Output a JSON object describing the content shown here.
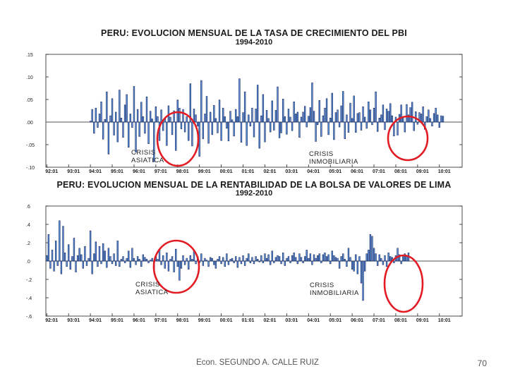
{
  "colors": {
    "bar_fill": "#5b8fd6",
    "bar_stroke": "#0a1650",
    "axis": "#222222",
    "circle": "#e31b23"
  },
  "chart_data": [
    {
      "type": "bar",
      "title": "PERU: EVOLUCION MENSUAL DE LA TASA DE CRECIMIENTO DEL PBI",
      "subtitle": "1994-2010",
      "ylim": [
        -0.1,
        0.15
      ],
      "ytick_labels": [
        ".15",
        ".10",
        ".05",
        ".00",
        "-.05",
        "-.10"
      ],
      "yticks": [
        0.15,
        0.1,
        0.05,
        0.0,
        -0.05,
        -0.1
      ],
      "xtick_labels": [
        "92:01",
        "93:01",
        "94:01",
        "95:01",
        "96:01",
        "97:01",
        "98:01",
        "99:01",
        "00:01",
        "01:01",
        "02:01",
        "03:01",
        "04:01",
        "05:01",
        "06:01",
        "07:01",
        "08:01",
        "09:01",
        "10:01"
      ],
      "x_start_year": 1992,
      "data_start_index": 24,
      "annotations": [
        {
          "text": "CRISIS\nASIATICA"
        },
        {
          "text": "CRISIS\nINMOBILIARIA"
        }
      ],
      "series": [
        {
          "values": [
            0.002,
            0.028,
            -0.025,
            0.031,
            -0.012,
            0.018,
            0.045,
            -0.038,
            0.006,
            0.067,
            -0.071,
            0.014,
            0.052,
            -0.029,
            0.022,
            -0.044,
            0.071,
            0.009,
            -0.034,
            0.038,
            0.061,
            -0.056,
            0.018,
            -0.012,
            0.079,
            -0.067,
            0.028,
            -0.032,
            0.044,
            0.012,
            -0.025,
            0.056,
            -0.048,
            0.024,
            0.007,
            -0.088,
            0.034,
            0.012,
            -0.041,
            0.027,
            -0.019,
            0.008,
            -0.052,
            0.036,
            0.011,
            -0.028,
            0.025,
            -0.063,
            0.049,
            0.031,
            -0.015,
            0.028,
            -0.022,
            0.012,
            -0.041,
            0.085,
            -0.053,
            0.029,
            0.016,
            -0.009,
            -0.076,
            0.092,
            -0.037,
            0.018,
            0.057,
            -0.047,
            0.022,
            -0.028,
            0.037,
            0.008,
            -0.024,
            0.049,
            -0.041,
            0.031,
            0.012,
            -0.014,
            -0.042,
            0.024,
            0.005,
            -0.031,
            0.028,
            0.012,
            0.096,
            -0.045,
            0.021,
            0.067,
            -0.052,
            0.016,
            -0.009,
            0.031,
            -0.033,
            0.029,
            0.082,
            -0.058,
            0.014,
            0.061,
            -0.044,
            0.026,
            0.008,
            -0.022,
            0.047,
            -0.018,
            0.026,
            0.078,
            -0.035,
            -0.024,
            0.051,
            0.012,
            -0.027,
            0.029,
            0.011,
            -0.019,
            0.045,
            0.018,
            0.022,
            -0.034,
            0.011,
            0.022,
            0.035,
            -0.011,
            0.013,
            0.032,
            0.087,
            0.024,
            -0.043,
            -0.006,
            0.048,
            -0.032,
            0.014,
            0.031,
            0.052,
            -0.028,
            0.009,
            0.064,
            -0.039,
            0.021,
            0.027,
            -0.011,
            0.036,
            0.068,
            -0.037,
            0.016,
            -0.023,
            0.042,
            0.008,
            0.058,
            -0.023,
            0.019,
            0.021,
            -0.018,
            0.034,
            0.011,
            -0.014,
            0.045,
            0.027,
            -0.006,
            0.031,
            0.067,
            -0.021,
            0.009,
            0.016,
            0.038,
            -0.017,
            0.029,
            0.024,
            0.041,
            0.014,
            -0.031,
            0.011,
            -0.029,
            0.017,
            0.038,
            0.012,
            -0.022,
            0.039,
            0.016,
            0.032,
            0.044,
            -0.019,
            0.023,
            -0.005,
            0.021,
            0.018,
            0.034,
            -0.016,
            0.012,
            0.027,
            0.008,
            -0.009,
            0.019,
            0.031,
            0.016,
            -0.012,
            0.014,
            0.013
          ]
        }
      ]
    },
    {
      "type": "bar",
      "title": "PERU: EVOLUCION MENSUAL DE LA RENTABILIDAD DE LA BOLSA DE VALORES DE LIMA",
      "subtitle": "1992-2010",
      "ylim": [
        -0.6,
        0.6
      ],
      "ytick_labels": [
        ".6",
        ".4",
        ".2",
        ".0",
        "-.2",
        "-.4",
        "-.6"
      ],
      "yticks": [
        0.6,
        0.4,
        0.2,
        0.0,
        -0.2,
        -0.4,
        -0.6
      ],
      "xtick_labels": [
        "92:01",
        "93:01",
        "94:01",
        "95:01",
        "96:01",
        "97:01",
        "98:01",
        "99:01",
        "00:01",
        "01:01",
        "02:01",
        "03:01",
        "04:01",
        "05:01",
        "06:01",
        "07:01",
        "08:01",
        "09:01",
        "10:01"
      ],
      "x_start_year": 1992,
      "data_start_index": 0,
      "annotations": [
        {
          "text": "CRISIS\nASIATICA"
        },
        {
          "text": "CRISIS\nINMOBILIARIA"
        }
      ],
      "series": [
        {
          "values": [
            0.06,
            0.29,
            -0.08,
            0.12,
            -0.11,
            0.22,
            -0.05,
            0.44,
            -0.14,
            0.38,
            0.09,
            -0.06,
            0.18,
            -0.09,
            0.05,
            0.25,
            -0.12,
            0.06,
            0.14,
            0.07,
            -0.08,
            0.16,
            -0.05,
            0.03,
            0.33,
            -0.14,
            0.08,
            0.21,
            -0.06,
            0.16,
            -0.03,
            0.19,
            0.11,
            -0.07,
            0.14,
            0.05,
            -0.03,
            0.08,
            -0.05,
            0.22,
            -0.06,
            0.02,
            0.05,
            -0.02,
            0.03,
            0.11,
            -0.07,
            0.14,
            0.03,
            -0.04,
            0.05,
            0.02,
            -0.06,
            0.07,
            0.04,
            0.02,
            -0.02,
            0.01,
            0.03,
            -0.09,
            0.05,
            0.02,
            0.12,
            -0.04,
            0.06,
            -0.08,
            0.09,
            -0.11,
            0.02,
            0.05,
            -0.12,
            0.13,
            -0.06,
            -0.21,
            -0.08,
            0.06,
            -0.04,
            0.03,
            -0.09,
            0.06,
            0.02,
            0.12,
            -0.03,
            0.05,
            -0.02,
            0.08,
            -0.05,
            0.03,
            0.01,
            -0.06,
            0.04,
            0.03,
            -0.04,
            -0.08,
            0.02,
            0.05,
            -0.03,
            0.04,
            -0.06,
            0.08,
            -0.04,
            0.02,
            0.03,
            -0.02,
            0.05,
            -0.07,
            0.04,
            -0.03,
            0.06,
            -0.05,
            0.03,
            0.08,
            -0.02,
            0.04,
            -0.03,
            0.05,
            0.02,
            -0.01,
            0.06,
            -0.02,
            0.08,
            0.03,
            0.07,
            -0.04,
            0.11,
            -0.02,
            0.04,
            0.06,
            0.05,
            -0.03,
            0.09,
            -0.05,
            0.03,
            0.05,
            -0.02,
            0.06,
            0.09,
            0.04,
            -0.03,
            0.08,
            0.04,
            -0.02,
            0.05,
            0.12,
            0.03,
            0.08,
            -0.04,
            0.07,
            0.03,
            0.06,
            0.08,
            -0.02,
            0.07,
            0.09,
            0.05,
            0.07,
            -0.03,
            0.11,
            0.06,
            0.04,
            0.03,
            -0.08,
            0.05,
            0.08,
            0.02,
            -0.06,
            0.14,
            0.04,
            -0.09,
            -0.11,
            0.07,
            -0.14,
            0.05,
            -0.24,
            -0.43,
            -0.11,
            0.08,
            0.12,
            0.29,
            0.27,
            0.14,
            0.08,
            -0.05,
            0.07,
            0.03,
            -0.04,
            0.06,
            -0.06,
            0.09,
            0.05,
            0.04,
            -0.02,
            0.06,
            0.14,
            0.07,
            -0.03,
            0.06,
            0.08,
            0.05,
            0.09
          ]
        }
      ]
    }
  ],
  "footer": {
    "author": "Econ. SEGUNDO A. CALLE RUIZ",
    "page": "70"
  }
}
